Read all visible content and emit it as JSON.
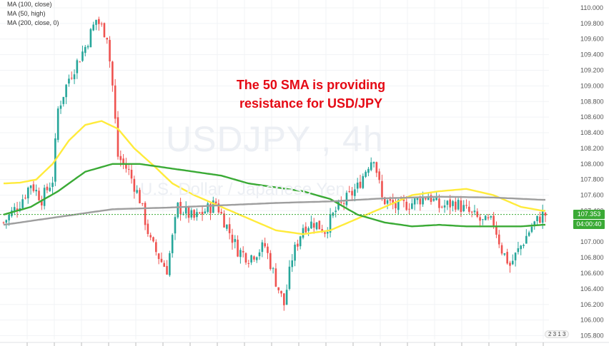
{
  "legend": {
    "items": [
      "MA (100, close)",
      "MA (50, high)",
      "MA (200, close, 0)"
    ]
  },
  "watermark": {
    "symbol": "USDJPY , 4h",
    "description": "U.S. Dollar / Japanese Yen"
  },
  "annotation": {
    "line1": "The 50 SMA is providing",
    "line2": "resistance for USD/JPY",
    "color": "#e50914"
  },
  "price_badges": {
    "last": "107.353",
    "countdown": "04:00:40"
  },
  "tv_badge": "2 3 1 3",
  "colors": {
    "up": "#26a69a",
    "down": "#ef5350",
    "ma50": "#ffeb3b",
    "ma100": "#3aaa35",
    "ma200": "#9e9e9e"
  },
  "chart_data": {
    "type": "line",
    "subtype": "candlestick",
    "symbol": "USDJPY",
    "timeframe": "4h",
    "ylim": [
      105.75,
      110.1
    ],
    "y_ticks": [
      "110.000",
      "109.800",
      "109.600",
      "109.400",
      "109.200",
      "109.000",
      "108.800",
      "108.600",
      "108.400",
      "108.200",
      "108.000",
      "107.800",
      "107.600",
      "107.400",
      "107.000",
      "106.800",
      "106.600",
      "106.400",
      "106.200",
      "106.000",
      "105.800"
    ],
    "last_price": 107.353,
    "grid": true,
    "anchors_close": [
      [
        0,
        107.25
      ],
      [
        6,
        107.5
      ],
      [
        10,
        107.75
      ],
      [
        14,
        107.55
      ],
      [
        18,
        107.8
      ],
      [
        20,
        108.7
      ],
      [
        24,
        109.1
      ],
      [
        30,
        109.5
      ],
      [
        34,
        109.85
      ],
      [
        38,
        109.65
      ],
      [
        40,
        109.0
      ],
      [
        42,
        108.1
      ],
      [
        46,
        107.9
      ],
      [
        50,
        107.55
      ],
      [
        54,
        107.0
      ],
      [
        58,
        106.75
      ],
      [
        60,
        106.65
      ],
      [
        64,
        107.45
      ],
      [
        70,
        107.3
      ],
      [
        78,
        107.5
      ],
      [
        82,
        107.2
      ],
      [
        86,
        106.9
      ],
      [
        90,
        106.8
      ],
      [
        96,
        106.95
      ],
      [
        100,
        106.5
      ],
      [
        103,
        106.2
      ],
      [
        106,
        106.8
      ],
      [
        110,
        107.2
      ],
      [
        114,
        107.25
      ],
      [
        118,
        107.15
      ],
      [
        122,
        107.4
      ],
      [
        126,
        107.55
      ],
      [
        130,
        107.7
      ],
      [
        134,
        108.0
      ],
      [
        136,
        108.1
      ],
      [
        139,
        107.55
      ],
      [
        144,
        107.45
      ],
      [
        150,
        107.5
      ],
      [
        156,
        107.6
      ],
      [
        160,
        107.45
      ],
      [
        166,
        107.5
      ],
      [
        172,
        107.35
      ],
      [
        176,
        107.25
      ],
      [
        180,
        107.25
      ],
      [
        183,
        106.9
      ],
      [
        186,
        106.7
      ],
      [
        190,
        106.95
      ],
      [
        194,
        107.2
      ],
      [
        198,
        107.35
      ]
    ],
    "series": [
      {
        "name": "MA (50, high)",
        "x": [
          0,
          6,
          12,
          18,
          24,
          30,
          36,
          42,
          48,
          56,
          62,
          70,
          80,
          90,
          100,
          110,
          120,
          130,
          140,
          150,
          160,
          170,
          180,
          190,
          198
        ],
        "values": [
          107.75,
          107.76,
          107.8,
          108.0,
          108.3,
          108.5,
          108.55,
          108.45,
          108.2,
          107.95,
          107.75,
          107.6,
          107.45,
          107.3,
          107.15,
          107.1,
          107.15,
          107.3,
          107.45,
          107.6,
          107.65,
          107.68,
          107.6,
          107.45,
          107.4
        ]
      },
      {
        "name": "MA (100, close)",
        "x": [
          0,
          10,
          20,
          30,
          40,
          50,
          60,
          70,
          80,
          90,
          100,
          110,
          120,
          130,
          140,
          150,
          160,
          170,
          180,
          190,
          198
        ],
        "values": [
          107.35,
          107.45,
          107.65,
          107.9,
          108.0,
          108.0,
          107.95,
          107.9,
          107.85,
          107.75,
          107.7,
          107.65,
          107.55,
          107.35,
          107.25,
          107.2,
          107.22,
          107.2,
          107.2,
          107.2,
          107.22
        ]
      },
      {
        "name": "MA (200, close, 0)",
        "x": [
          0,
          20,
          40,
          60,
          80,
          100,
          120,
          140,
          160,
          180,
          198
        ],
        "values": [
          107.22,
          107.32,
          107.42,
          107.44,
          107.47,
          107.5,
          107.52,
          107.56,
          107.58,
          107.57,
          107.54
        ]
      }
    ]
  }
}
